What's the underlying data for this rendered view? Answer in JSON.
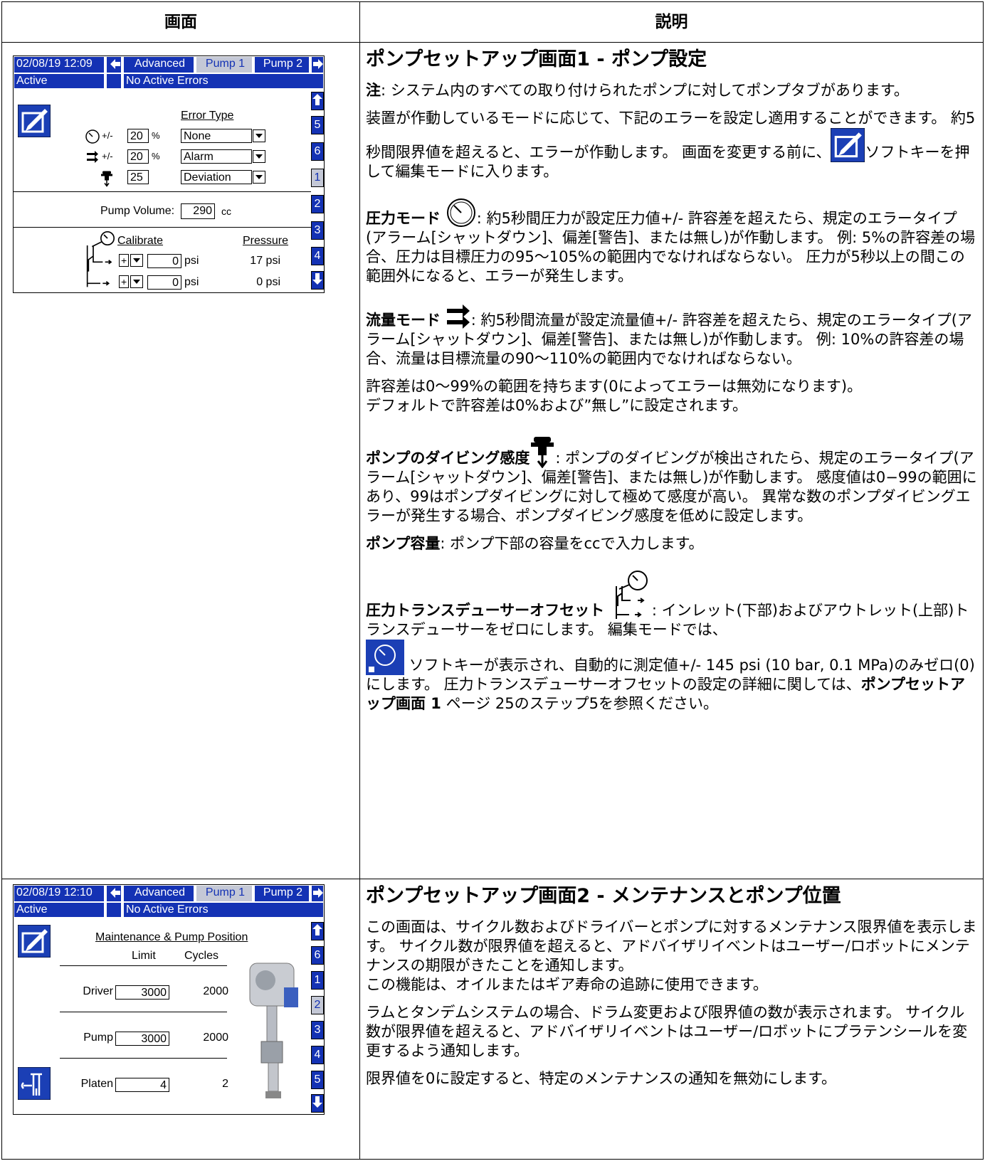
{
  "table": {
    "headers": [
      "画面",
      "説明"
    ]
  },
  "screen1": {
    "datetime": "02/08/19 12:09",
    "tabs": [
      "Advanced",
      "Pump 1",
      "Pump 2"
    ],
    "status": "Active",
    "errors": "No Active Errors",
    "nav": [
      "5",
      "6",
      "1",
      "2",
      "3",
      "4"
    ],
    "error_type": "Error Type",
    "rows": [
      {
        "prefix": "+/-",
        "value": "20",
        "unit": "%",
        "type": "None"
      },
      {
        "prefix": "+/-",
        "value": "20",
        "unit": "%",
        "type": "Alarm"
      },
      {
        "value": "25",
        "type": "Deviation"
      }
    ],
    "volume": {
      "label": "Pump Volume:",
      "value": "290",
      "unit": "cc"
    },
    "calibrate": "Calibrate",
    "pressure": "Pressure",
    "transducers": [
      {
        "sign": "+",
        "offset": "0",
        "unit": "psi",
        "pressure": "17 psi"
      },
      {
        "sign": "+",
        "offset": "0",
        "unit": "psi",
        "pressure": "0 psi"
      }
    ]
  },
  "screen2": {
    "datetime": "02/08/19 12:10",
    "tabs": [
      "Advanced",
      "Pump 1",
      "Pump 2"
    ],
    "status": "Active",
    "errors": "No Active Errors",
    "nav": [
      "6",
      "1",
      "2",
      "3",
      "4",
      "5"
    ],
    "title": "Maintenance & Pump Position",
    "limit": "Limit",
    "cycles": "Cycles",
    "rows": [
      {
        "label": "Driver",
        "limit": "3000",
        "cycles": "2000"
      },
      {
        "label": "Pump",
        "limit": "3000",
        "cycles": "2000"
      },
      {
        "label": "Platen",
        "limit": "4",
        "cycles": "2"
      }
    ]
  },
  "desc1": {
    "title": "ポンプセットアップ画面1 - ポンプ設定",
    "note": {
      "label": "注",
      "text": ": システム内のすべての取り付けられたポンプに対してポンプタブがあります。"
    },
    "errors": {
      "before": "装置が作動しているモードに応じて、下記のエラーを設定し適用することができます。 約5秒間限界値を超えると、エラーが作動します。 画面を変更する前に、",
      "after": "ソフトキーを押して編集モードに入ります。"
    },
    "pressure_mode": {
      "label": "圧力モード",
      "text": ": 約5秒間圧力が設定圧力値+/- 許容差を超えたら、規定のエラータイプ(アラーム[シャットダウン]、偏差[警告]、または無し)が作動します。 例: 5%の許容差の場合、圧力は目標圧力の95～105%の範囲内でなければならない。 圧力が5秒以上の間この範囲外になると、エラーが発生します。"
    },
    "flow_mode": {
      "label": "流量モード",
      "text": ": 約5秒間流量が設定流量値+/- 許容差を超えたら、規定のエラータイプ(アラーム[シャットダウン]、偏差[警告]、または無し)が作動します。 例: 10%の許容差の場合、流量は目標流量の90～110%の範囲内でなければならない。"
    },
    "tolerance": [
      "許容差は0～99%の範囲を持ちます(0によってエラーは無効になります)。",
      "デフォルトで許容差は0%および”無し”に設定されます。"
    ],
    "diving": {
      "label": "ポンプのダイビング感度",
      "text": ": ポンプのダイビングが検出されたら、規定のエラータイプ(アラーム[シャットダウン]、偏差[警告]、または無し)が作動します。 感度値は0−99の範囲にあり、99はポンプダイビングに対して極めて感度が高い。 異常な数のポンプダイビングエラーが発生する場合、ポンプダイビング感度を低めに設定します。"
    },
    "volume": {
      "label": "ポンプ容量",
      "text": ": ポンプ下部の容量をccで入力します。"
    },
    "offset": {
      "label": "圧力トランスデューサーオフセット",
      "text1": ": インレット(下部)およびアウトレット(上部)トランスデューサーをゼロにします。 編集モードでは、",
      "text2": " ソフトキーが表示され、自動的に測定値+/- 145 psi (10 bar, 0.1 MPa)のみゼロ(0)にします。 圧力トランスデューサーオフセットの設定の詳細に関しては、",
      "link": "ポンプセットアップ画面 1",
      "text3": " ページ 25のステップ5を参照ください。"
    }
  },
  "desc2": {
    "title": "ポンプセットアップ画面2 - メンテナンスとポンプ位置",
    "p1": [
      "この画面は、サイクル数およびドライバーとポンプに対するメンテナンス限界値を表示します。 サイクル数が限界値を超えると、アドバイザリイベントはユーザー/ロボットにメンテナンスの期限がきたことを通知します。",
      "この機能は、オイルまたはギア寿命の追跡に使用できます。"
    ],
    "p2": "ラムとタンデムシステムの場合、ドラム変更および限界値の数が表示されます。 サイクル数が限界値を超えると、アドバイザリイベントはユーザー/ロボットにプラテンシールを変更するよう通知します。",
    "p3": "限界値を0に設定すると、特定のメンテナンスの通知を無効にします。"
  }
}
